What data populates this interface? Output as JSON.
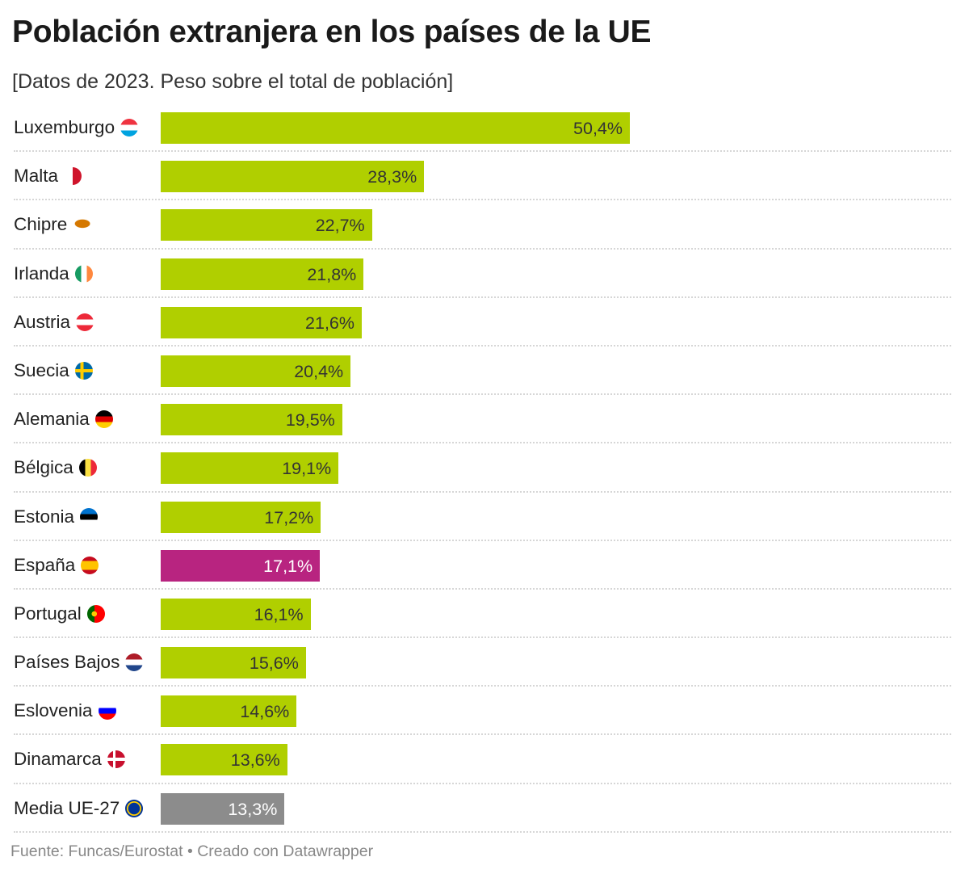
{
  "title": "Población extranjera en los países de la UE",
  "subtitle": "[Datos de 2023. Peso sobre el total de población]",
  "source": "Fuente: Funcas/Eurostat • Creado con Datawrapper",
  "colors": {
    "default": "#b0cf00",
    "highlight": "#b82480",
    "average": "#8c8c8c"
  },
  "chart_data": {
    "type": "bar",
    "orientation": "horizontal",
    "unit": "%",
    "xlim": [
      0,
      50.4
    ],
    "grid": false,
    "categories": [
      "Luxemburgo",
      "Malta",
      "Chipre",
      "Irlanda",
      "Austria",
      "Suecia",
      "Alemania",
      "Bélgica",
      "Estonia",
      "España",
      "Portugal",
      "Países Bajos",
      "Eslovenia",
      "Dinamarca",
      "Media UE-27"
    ],
    "values": [
      50.4,
      28.3,
      22.7,
      21.8,
      21.6,
      20.4,
      19.5,
      19.1,
      17.2,
      17.1,
      16.1,
      15.6,
      14.6,
      13.6,
      13.3
    ],
    "labels": [
      "50,4%",
      "28,3%",
      "22,7%",
      "21,8%",
      "21,6%",
      "20,4%",
      "19,5%",
      "19,1%",
      "17,2%",
      "17,1%",
      "16,1%",
      "15,6%",
      "14,6%",
      "13,6%",
      "13,3%"
    ],
    "flags": [
      "flag-luxembourg-icon",
      "flag-malta-icon",
      "flag-cyprus-icon",
      "flag-ireland-icon",
      "flag-austria-icon",
      "flag-sweden-icon",
      "flag-germany-icon",
      "flag-belgium-icon",
      "flag-estonia-icon",
      "flag-spain-icon",
      "flag-portugal-icon",
      "flag-netherlands-icon",
      "flag-slovenia-icon",
      "flag-denmark-icon",
      "flag-eu-icon"
    ],
    "highlight": [
      "España"
    ],
    "average": [
      "Media UE-27"
    ]
  }
}
